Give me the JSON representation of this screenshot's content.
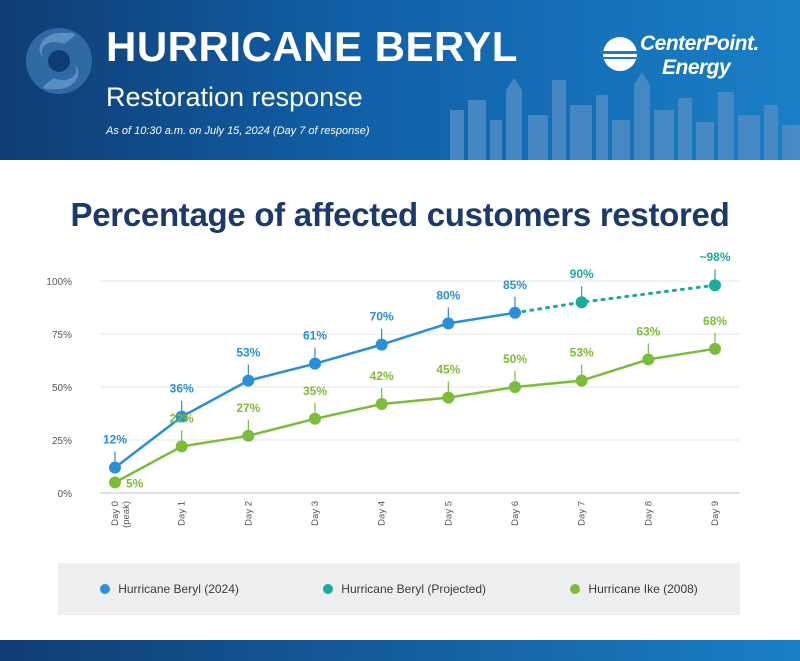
{
  "header": {
    "title": "HURRICANE BERYL",
    "subtitle": "Restoration response",
    "as_of": "As of 10:30 a.m. on July 15, 2024 (Day 7 of response)"
  },
  "logo": {
    "line1": "CenterPoint.",
    "line2": "Energy"
  },
  "colors": {
    "header_dark": "#0f3d73",
    "header_light": "#1a7fc6",
    "title": "#1b3a6b",
    "beryl": "#2a8fd6",
    "projected": "#1aab9b",
    "ike": "#7cbc3a"
  },
  "chart_data": {
    "type": "line",
    "title": "Percentage of affected customers restored",
    "categories": [
      "Day 0 (peak)",
      "Day 1",
      "Day 2",
      "Day 3",
      "Day 4",
      "Day 5",
      "Day 6",
      "Day 7",
      "Day 8",
      "Day 9"
    ],
    "y_ticks": [
      "0%",
      "25%",
      "50%",
      "75%",
      "100%"
    ],
    "ylim": [
      0,
      100
    ],
    "grid": true,
    "legend_position": "bottom",
    "series": [
      {
        "name": "Hurricane Beryl (2024)",
        "color": "#2a8fd6",
        "dashed": false,
        "points": [
          {
            "x": 0,
            "y": 12,
            "label": "12%"
          },
          {
            "x": 1,
            "y": 36,
            "label": "36%"
          },
          {
            "x": 2,
            "y": 53,
            "label": "53%"
          },
          {
            "x": 3,
            "y": 61,
            "label": "61%"
          },
          {
            "x": 4,
            "y": 70,
            "label": "70%"
          },
          {
            "x": 5,
            "y": 80,
            "label": "80%"
          },
          {
            "x": 6,
            "y": 85,
            "label": "85%"
          }
        ]
      },
      {
        "name": "Hurricane Beryl (Projected)",
        "color": "#1aab9b",
        "dashed": true,
        "points": [
          {
            "x": 6,
            "y": 85,
            "label": ""
          },
          {
            "x": 7,
            "y": 90,
            "label": "90%"
          },
          {
            "x": 9,
            "y": 98,
            "label": "~98%"
          }
        ]
      },
      {
        "name": "Hurricane Ike (2008)",
        "color": "#7cbc3a",
        "dashed": false,
        "points": [
          {
            "x": 0,
            "y": 5,
            "label": "5%"
          },
          {
            "x": 1,
            "y": 22,
            "label": "22%"
          },
          {
            "x": 2,
            "y": 27,
            "label": "27%"
          },
          {
            "x": 3,
            "y": 35,
            "label": "35%"
          },
          {
            "x": 4,
            "y": 42,
            "label": "42%"
          },
          {
            "x": 5,
            "y": 45,
            "label": "45%"
          },
          {
            "x": 6,
            "y": 50,
            "label": "50%"
          },
          {
            "x": 7,
            "y": 53,
            "label": "53%"
          },
          {
            "x": 8,
            "y": 63,
            "label": "63%"
          },
          {
            "x": 9,
            "y": 68,
            "label": "68%"
          }
        ]
      }
    ]
  }
}
